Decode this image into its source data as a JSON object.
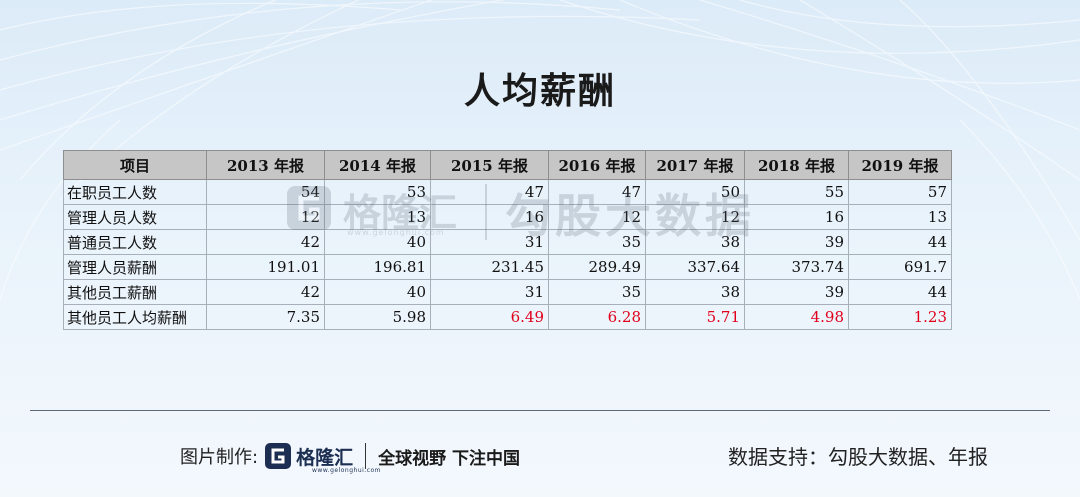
{
  "title": "人均薪酬",
  "table": {
    "headers": [
      "项目",
      "2013 年报",
      "2014 年报",
      "2015 年报",
      "2016 年报",
      "2017 年报",
      "2018 年报",
      "2019 年报"
    ],
    "rows": [
      {
        "label": "在职员工人数",
        "values": [
          "54",
          "53",
          "47",
          "47",
          "50",
          "55",
          "57"
        ]
      },
      {
        "label": "管理人员人数",
        "values": [
          "12",
          "13",
          "16",
          "12",
          "12",
          "16",
          "13"
        ]
      },
      {
        "label": "普通员工人数",
        "values": [
          "42",
          "40",
          "31",
          "35",
          "38",
          "39",
          "44"
        ]
      },
      {
        "label": "管理人员薪酬",
        "values": [
          "191.01",
          "196.81",
          "231.45",
          "289.49",
          "337.64",
          "373.74",
          "691.7"
        ]
      },
      {
        "label": "其他员工薪酬",
        "values": [
          "42",
          "40",
          "31",
          "35",
          "38",
          "39",
          "44"
        ]
      },
      {
        "label": "其他员工人均薪酬",
        "values": [
          "7.35",
          "5.98",
          "6.49",
          "6.28",
          "5.71",
          "4.98",
          "1.23"
        ]
      }
    ],
    "highlight_color": "#e0001b"
  },
  "watermark": {
    "brand": "格隆汇",
    "url": "www.gelonghui.com",
    "text": "勾股大数据"
  },
  "footer": {
    "made_by_label": "图片制作:",
    "brand": "格隆汇",
    "brand_url": "www.gelonghui.com",
    "slogan": "全球视野 下注中国",
    "source": "数据支持：勾股大数据、年报"
  }
}
